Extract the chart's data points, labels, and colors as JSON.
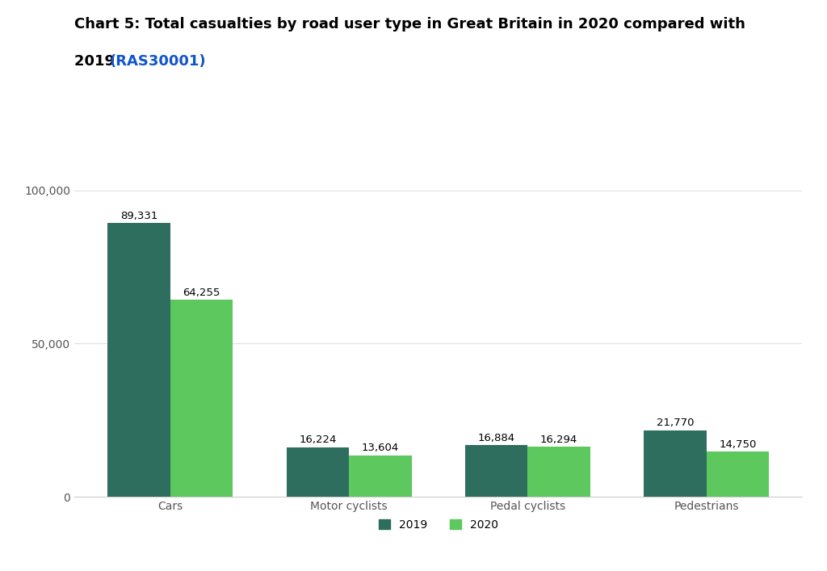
{
  "title_line1": "Chart 5: Total casualties by road user type in Great Britain in 2020 compared with",
  "title_line2_black": "2019 ",
  "title_line2_blue": "(RAS30001)",
  "categories": [
    "Cars",
    "Motor cyclists",
    "Pedal cyclists",
    "Pedestrians"
  ],
  "values_2019": [
    89331,
    16224,
    16884,
    21770
  ],
  "values_2020": [
    64255,
    13604,
    16294,
    14750
  ],
  "color_2019": "#2d6e5e",
  "color_2020": "#5dc85d",
  "background_color": "#ffffff",
  "ylim": [
    0,
    110000
  ],
  "yticks": [
    0,
    50000,
    100000
  ],
  "ytick_labels": [
    "0",
    "50,000",
    "100,000"
  ],
  "bar_width": 0.35,
  "legend_labels": [
    "2019",
    "2020"
  ],
  "title_fontsize": 13,
  "axis_fontsize": 10,
  "label_fontsize": 9.5
}
